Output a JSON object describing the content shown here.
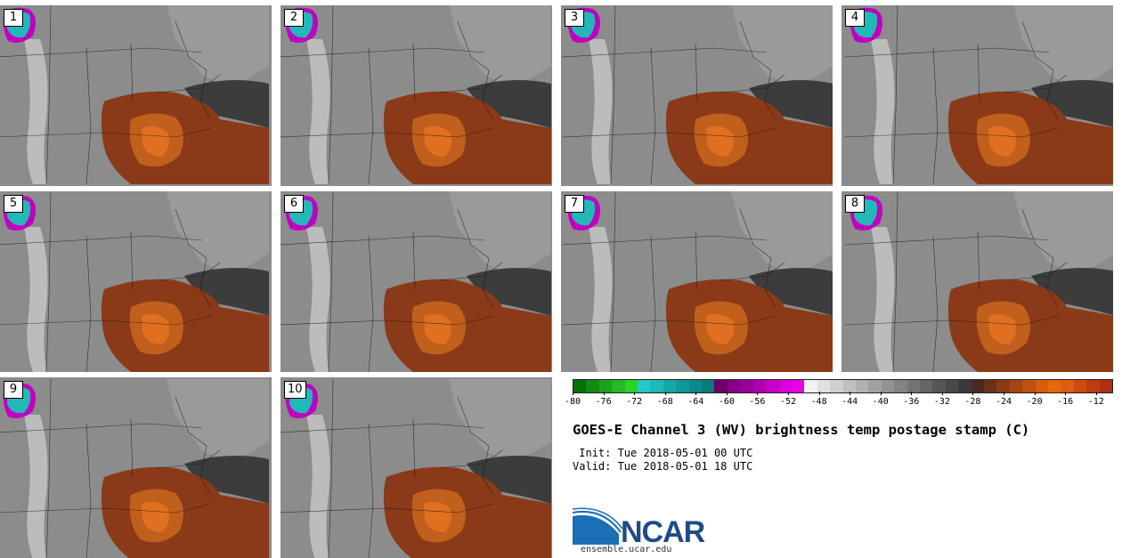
{
  "panels": [
    {
      "label": "1"
    },
    {
      "label": "2"
    },
    {
      "label": "3"
    },
    {
      "label": "4"
    },
    {
      "label": "5"
    },
    {
      "label": "6"
    },
    {
      "label": "7"
    },
    {
      "label": "8"
    },
    {
      "label": "9"
    },
    {
      "label": "10"
    }
  ],
  "colorbar": {
    "ticks": [
      "-80",
      "-76",
      "-72",
      "-68",
      "-64",
      "-60",
      "-56",
      "-52",
      "-48",
      "-44",
      "-40",
      "-36",
      "-32",
      "-28",
      "-24",
      "-20",
      "-16",
      "-12"
    ],
    "tick_values": [
      -80,
      -76,
      -72,
      -68,
      -64,
      -60,
      -56,
      -52,
      -48,
      -44,
      -40,
      -36,
      -32,
      -28,
      -24,
      -20,
      -16,
      -12
    ],
    "min": -80,
    "max": -10,
    "colors": [
      "#0a6e0a",
      "#138a13",
      "#1aa31a",
      "#22bb22",
      "#2ad22a",
      "#26c7c7",
      "#1db8b8",
      "#16a8a8",
      "#0f9999",
      "#0a8a8a",
      "#087a7a",
      "#6b006b",
      "#850085",
      "#9a009a",
      "#b000b0",
      "#c600c6",
      "#dc00dc",
      "#e600e6",
      "#f2f2f2",
      "#e0e0e0",
      "#cfcfcf",
      "#bfbfbf",
      "#b0b0b0",
      "#a0a0a0",
      "#929292",
      "#838383",
      "#747474",
      "#656565",
      "#565656",
      "#484848",
      "#3a3a3a",
      "#4a2a20",
      "#6a3018",
      "#8a3a18",
      "#a84414",
      "#c05010",
      "#d85c0c",
      "#e86808",
      "#e05a10",
      "#d04a10",
      "#c03a10",
      "#b02e10"
    ]
  },
  "title": "GOES-E Channel 3 (WV) brightness temp postage stamp (C)",
  "init": " Init: Tue 2018-05-01 00 UTC",
  "valid": "Valid: Tue 2018-05-01 18 UTC",
  "logo_text": "NCAR",
  "website": "ensemble.ucar.edu",
  "colors": {
    "bg_gray": "#8c8c8c",
    "dark_gray": "#3c3c3c",
    "light_gray": "#c4c4c4",
    "orange": "#c0601c",
    "orange_core": "#e07020",
    "dark_orange": "#8a3a18",
    "magenta": "#c000c0",
    "cyan": "#22b8b8",
    "ncar_blue": "#1e4b86"
  }
}
